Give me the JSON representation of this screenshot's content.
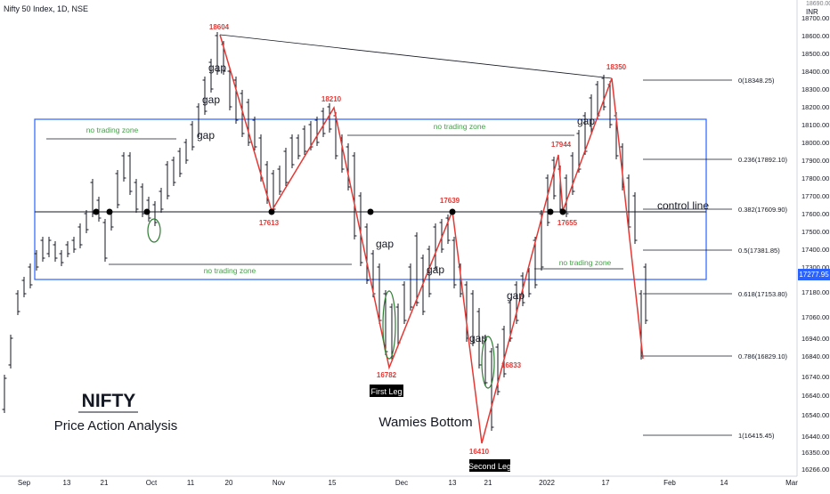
{
  "header": {
    "symbol_line": "Nifty 50 Index, 1D, NSE"
  },
  "axis": {
    "currency": "INR",
    "top_label": "18690.00",
    "last_price": "17277.95",
    "x_ticks": [
      "Sep",
      "13",
      "21",
      "Oct",
      "11",
      "20",
      "Nov",
      "15",
      "Dec",
      "13",
      "21",
      "2022",
      "17",
      "Feb",
      "14",
      "Mar"
    ],
    "y_ticks": [
      "18700.00",
      "18600.00",
      "18500.00",
      "18400.00",
      "18300.00",
      "18200.00",
      "18100.00",
      "18000.00",
      "17900.00",
      "17800.00",
      "17700.00",
      "17600.00",
      "17500.00",
      "17400.00",
      "17300.00",
      "17180.00",
      "17060.00",
      "16940.00",
      "16840.00",
      "16740.00",
      "16640.00",
      "16540.00",
      "16440.00",
      "16350.00",
      "16266.00"
    ]
  },
  "fib_levels": [
    {
      "ratio": "0",
      "label": "0(18348.25)",
      "price": 18348.25
    },
    {
      "ratio": "0.236",
      "label": "0.236(17892.10)",
      "price": 17892.1
    },
    {
      "ratio": "0.382",
      "label": "0.382(17609.90)",
      "price": 17609.9
    },
    {
      "ratio": "0.5",
      "label": "0.5(17381.85)",
      "price": 17381.85
    },
    {
      "ratio": "0.618",
      "label": "0.618(17153.80)",
      "price": 17153.8
    },
    {
      "ratio": "0.786",
      "label": "0.786(16829.10)",
      "price": 16829.1
    },
    {
      "ratio": "1",
      "label": "1(16415.45)",
      "price": 16415.45
    }
  ],
  "swing_points": [
    {
      "label": "18604",
      "type": "high"
    },
    {
      "label": "17613",
      "type": "low"
    },
    {
      "label": "18210",
      "type": "high"
    },
    {
      "label": "16782",
      "type": "low"
    },
    {
      "label": "17639",
      "type": "high"
    },
    {
      "label": "16410",
      "type": "low"
    },
    {
      "label": "17944",
      "type": "high"
    },
    {
      "label": "17655",
      "type": "low"
    },
    {
      "label": "18350",
      "type": "high"
    },
    {
      "label": "16833",
      "type": "low"
    }
  ],
  "annotations": {
    "gap": "gap",
    "no_trading_zone": "no trading zone",
    "control_line": "control line",
    "first_leg": "First Leg",
    "second_leg": "Second Leg",
    "pattern": "Wamies Bottom",
    "title": "NIFTY",
    "subtitle": "Price Action Analysis"
  },
  "colors": {
    "zigzag": "#e53935",
    "zone": "#2962ff",
    "zone_text": "#43a047",
    "bars": "#131722",
    "ellipse": "#2e7d32",
    "price_tag": "#2962ff"
  },
  "chart_data": {
    "type": "ohlc",
    "title": "Nifty 50 Index, 1D, NSE",
    "ylabel": "INR",
    "ylim": [
      16266,
      18750
    ],
    "x_ticks": [
      "Sep",
      "13",
      "21",
      "Oct",
      "11",
      "20",
      "Nov",
      "15",
      "Dec",
      "13",
      "21",
      "2022",
      "17",
      "Feb",
      "14",
      "Mar"
    ],
    "last_price": 17277.95,
    "zigzag": [
      {
        "label": "18604",
        "y": 18604
      },
      {
        "label": "17613",
        "y": 17613
      },
      {
        "label": "18210",
        "y": 18210
      },
      {
        "label": "16782",
        "y": 16782
      },
      {
        "label": "17639",
        "y": 17639
      },
      {
        "label": "16410",
        "y": 16410
      },
      {
        "label": "17944",
        "y": 17944
      },
      {
        "label": "17655",
        "y": 17655
      },
      {
        "label": "18350",
        "y": 18350
      },
      {
        "label": "16833",
        "y": 16833
      }
    ],
    "trend_line": [
      {
        "label": "18604",
        "y": 18604
      },
      {
        "label": "18350",
        "y": 18350
      }
    ],
    "control_line": 17613,
    "no_trading_zone": [
      17200,
      18120
    ],
    "fibonacci": [
      {
        "ratio": 0,
        "price": 18348.25
      },
      {
        "ratio": 0.236,
        "price": 17892.1
      },
      {
        "ratio": 0.382,
        "price": 17609.9
      },
      {
        "ratio": 0.5,
        "price": 17381.85
      },
      {
        "ratio": 0.618,
        "price": 17153.8
      },
      {
        "ratio": 0.786,
        "price": 16829.1
      },
      {
        "ratio": 1,
        "price": 16415.45
      }
    ]
  }
}
